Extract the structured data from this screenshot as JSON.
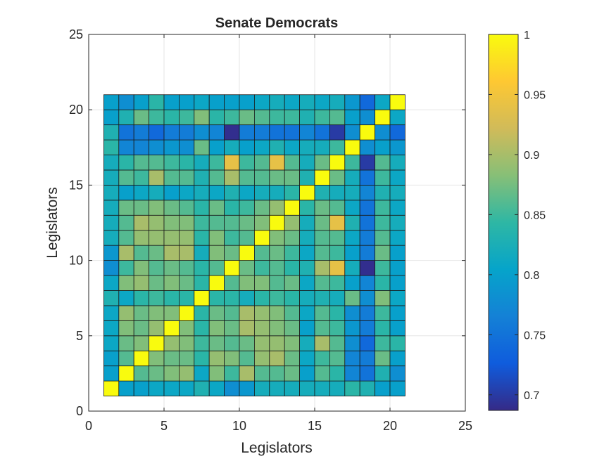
{
  "chart_data": {
    "type": "heatmap",
    "title": "Senate Democrats",
    "xlabel": "Legislators",
    "ylabel": "Legislators",
    "xlim": [
      0,
      25
    ],
    "ylim": [
      0,
      25
    ],
    "xticks": [
      "0",
      "5",
      "10",
      "15",
      "20",
      "25"
    ],
    "yticks": [
      "0",
      "5",
      "10",
      "15",
      "20",
      "25"
    ],
    "grid": true,
    "colormap": "parula",
    "clim": [
      0.687,
      1.0
    ],
    "colorbar_ticks": [
      "0.7",
      "0.75",
      "0.8",
      "0.85",
      "0.9",
      "0.95",
      "1"
    ],
    "colorbar_tick_values": [
      0.7,
      0.75,
      0.8,
      0.85,
      0.9,
      0.95,
      1.0
    ],
    "row_order": "first row is legislator 1 (bottom), last row is legislator 20 (top)",
    "matrix": [
      [
        1.0,
        0.8,
        0.8,
        0.81,
        0.81,
        0.81,
        0.83,
        0.81,
        0.78,
        0.79,
        0.82,
        0.82,
        0.82,
        0.82,
        0.82,
        0.82,
        0.84,
        0.83,
        0.8,
        0.8
      ],
      [
        0.8,
        1.0,
        0.86,
        0.87,
        0.88,
        0.89,
        0.81,
        0.88,
        0.85,
        0.9,
        0.86,
        0.86,
        0.87,
        0.8,
        0.86,
        0.84,
        0.77,
        0.75,
        0.83,
        0.78
      ],
      [
        0.8,
        0.86,
        1.0,
        0.88,
        0.87,
        0.87,
        0.84,
        0.89,
        0.88,
        0.86,
        0.89,
        0.9,
        0.87,
        0.81,
        0.85,
        0.86,
        0.77,
        0.76,
        0.87,
        0.8
      ],
      [
        0.81,
        0.87,
        0.88,
        1.0,
        0.89,
        0.88,
        0.85,
        0.87,
        0.86,
        0.87,
        0.89,
        0.89,
        0.88,
        0.82,
        0.9,
        0.86,
        0.78,
        0.74,
        0.85,
        0.84
      ],
      [
        0.81,
        0.88,
        0.87,
        0.89,
        1.0,
        0.88,
        0.84,
        0.88,
        0.87,
        0.9,
        0.89,
        0.88,
        0.87,
        0.8,
        0.86,
        0.85,
        0.79,
        0.76,
        0.84,
        0.8
      ],
      [
        0.81,
        0.89,
        0.87,
        0.88,
        0.88,
        1.0,
        0.84,
        0.87,
        0.86,
        0.9,
        0.89,
        0.88,
        0.86,
        0.81,
        0.86,
        0.84,
        0.78,
        0.76,
        0.85,
        0.8
      ],
      [
        0.83,
        0.81,
        0.84,
        0.85,
        0.84,
        0.84,
        1.0,
        0.84,
        0.84,
        0.82,
        0.84,
        0.85,
        0.84,
        0.82,
        0.83,
        0.82,
        0.87,
        0.78,
        0.88,
        0.81
      ],
      [
        0.81,
        0.88,
        0.89,
        0.87,
        0.88,
        0.87,
        0.84,
        1.0,
        0.86,
        0.88,
        0.88,
        0.86,
        0.87,
        0.81,
        0.86,
        0.85,
        0.8,
        0.77,
        0.84,
        0.8
      ],
      [
        0.78,
        0.85,
        0.88,
        0.86,
        0.87,
        0.86,
        0.84,
        0.86,
        1.0,
        0.87,
        0.85,
        0.86,
        0.84,
        0.83,
        0.9,
        0.94,
        0.82,
        0.69,
        0.85,
        0.8
      ],
      [
        0.79,
        0.9,
        0.86,
        0.87,
        0.9,
        0.9,
        0.82,
        0.88,
        0.87,
        1.0,
        0.86,
        0.87,
        0.85,
        0.81,
        0.86,
        0.85,
        0.8,
        0.76,
        0.87,
        0.8
      ],
      [
        0.82,
        0.86,
        0.89,
        0.89,
        0.89,
        0.89,
        0.84,
        0.88,
        0.85,
        0.86,
        1.0,
        0.88,
        0.87,
        0.82,
        0.86,
        0.86,
        0.81,
        0.76,
        0.86,
        0.81
      ],
      [
        0.82,
        0.86,
        0.9,
        0.89,
        0.88,
        0.88,
        0.85,
        0.86,
        0.86,
        0.87,
        0.88,
        1.0,
        0.89,
        0.82,
        0.87,
        0.94,
        0.83,
        0.75,
        0.85,
        0.82
      ],
      [
        0.82,
        0.87,
        0.87,
        0.88,
        0.87,
        0.86,
        0.84,
        0.87,
        0.84,
        0.85,
        0.87,
        0.89,
        1.0,
        0.84,
        0.87,
        0.86,
        0.81,
        0.75,
        0.85,
        0.81
      ],
      [
        0.82,
        0.8,
        0.81,
        0.82,
        0.8,
        0.81,
        0.82,
        0.81,
        0.83,
        0.81,
        0.82,
        0.82,
        0.84,
        1.0,
        0.83,
        0.82,
        0.82,
        0.77,
        0.83,
        0.82
      ],
      [
        0.82,
        0.86,
        0.85,
        0.9,
        0.86,
        0.86,
        0.83,
        0.86,
        0.9,
        0.86,
        0.86,
        0.87,
        0.87,
        0.83,
        1.0,
        0.87,
        0.82,
        0.75,
        0.85,
        0.81
      ],
      [
        0.82,
        0.84,
        0.86,
        0.86,
        0.85,
        0.84,
        0.82,
        0.85,
        0.94,
        0.85,
        0.86,
        0.94,
        0.86,
        0.82,
        0.87,
        1.0,
        0.85,
        0.7,
        0.86,
        0.82
      ],
      [
        0.84,
        0.77,
        0.77,
        0.78,
        0.79,
        0.78,
        0.87,
        0.8,
        0.82,
        0.8,
        0.81,
        0.83,
        0.81,
        0.82,
        0.82,
        0.85,
        1.0,
        0.78,
        0.8,
        0.79
      ],
      [
        0.83,
        0.75,
        0.76,
        0.74,
        0.76,
        0.76,
        0.78,
        0.77,
        0.69,
        0.76,
        0.76,
        0.75,
        0.75,
        0.77,
        0.75,
        0.7,
        0.78,
        1.0,
        0.78,
        0.74
      ],
      [
        0.8,
        0.83,
        0.87,
        0.85,
        0.84,
        0.85,
        0.88,
        0.84,
        0.85,
        0.87,
        0.86,
        0.85,
        0.85,
        0.83,
        0.85,
        0.86,
        0.8,
        0.78,
        1.0,
        0.81
      ],
      [
        0.8,
        0.78,
        0.8,
        0.84,
        0.8,
        0.8,
        0.81,
        0.8,
        0.8,
        0.8,
        0.81,
        0.82,
        0.81,
        0.82,
        0.81,
        0.82,
        0.79,
        0.74,
        0.81,
        1.0
      ]
    ]
  }
}
